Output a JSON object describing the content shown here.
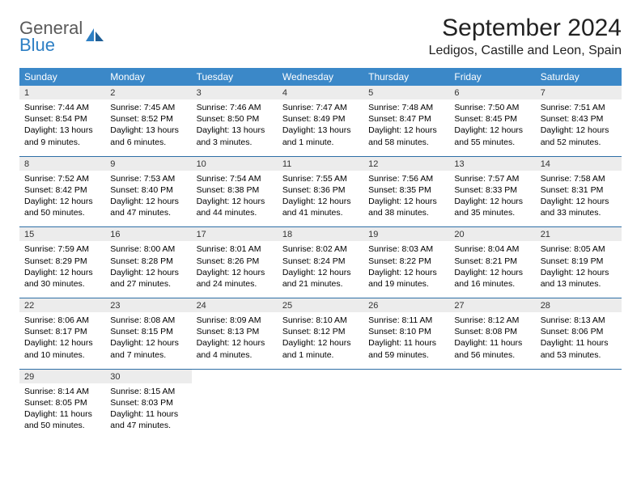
{
  "logo": {
    "line1": "General",
    "line2": "Blue",
    "text_color": "#5a5a5a",
    "accent_color": "#2d7fc4"
  },
  "title": "September 2024",
  "location": "Ledigos, Castille and Leon, Spain",
  "header_bg": "#3b88c8",
  "daynum_bg": "#ececec",
  "rule_color": "#2e6fa6",
  "weekdays": [
    "Sunday",
    "Monday",
    "Tuesday",
    "Wednesday",
    "Thursday",
    "Friday",
    "Saturday"
  ],
  "weeks": [
    [
      {
        "n": "1",
        "sr": "Sunrise: 7:44 AM",
        "ss": "Sunset: 8:54 PM",
        "dl": "Daylight: 13 hours and 9 minutes."
      },
      {
        "n": "2",
        "sr": "Sunrise: 7:45 AM",
        "ss": "Sunset: 8:52 PM",
        "dl": "Daylight: 13 hours and 6 minutes."
      },
      {
        "n": "3",
        "sr": "Sunrise: 7:46 AM",
        "ss": "Sunset: 8:50 PM",
        "dl": "Daylight: 13 hours and 3 minutes."
      },
      {
        "n": "4",
        "sr": "Sunrise: 7:47 AM",
        "ss": "Sunset: 8:49 PM",
        "dl": "Daylight: 13 hours and 1 minute."
      },
      {
        "n": "5",
        "sr": "Sunrise: 7:48 AM",
        "ss": "Sunset: 8:47 PM",
        "dl": "Daylight: 12 hours and 58 minutes."
      },
      {
        "n": "6",
        "sr": "Sunrise: 7:50 AM",
        "ss": "Sunset: 8:45 PM",
        "dl": "Daylight: 12 hours and 55 minutes."
      },
      {
        "n": "7",
        "sr": "Sunrise: 7:51 AM",
        "ss": "Sunset: 8:43 PM",
        "dl": "Daylight: 12 hours and 52 minutes."
      }
    ],
    [
      {
        "n": "8",
        "sr": "Sunrise: 7:52 AM",
        "ss": "Sunset: 8:42 PM",
        "dl": "Daylight: 12 hours and 50 minutes."
      },
      {
        "n": "9",
        "sr": "Sunrise: 7:53 AM",
        "ss": "Sunset: 8:40 PM",
        "dl": "Daylight: 12 hours and 47 minutes."
      },
      {
        "n": "10",
        "sr": "Sunrise: 7:54 AM",
        "ss": "Sunset: 8:38 PM",
        "dl": "Daylight: 12 hours and 44 minutes."
      },
      {
        "n": "11",
        "sr": "Sunrise: 7:55 AM",
        "ss": "Sunset: 8:36 PM",
        "dl": "Daylight: 12 hours and 41 minutes."
      },
      {
        "n": "12",
        "sr": "Sunrise: 7:56 AM",
        "ss": "Sunset: 8:35 PM",
        "dl": "Daylight: 12 hours and 38 minutes."
      },
      {
        "n": "13",
        "sr": "Sunrise: 7:57 AM",
        "ss": "Sunset: 8:33 PM",
        "dl": "Daylight: 12 hours and 35 minutes."
      },
      {
        "n": "14",
        "sr": "Sunrise: 7:58 AM",
        "ss": "Sunset: 8:31 PM",
        "dl": "Daylight: 12 hours and 33 minutes."
      }
    ],
    [
      {
        "n": "15",
        "sr": "Sunrise: 7:59 AM",
        "ss": "Sunset: 8:29 PM",
        "dl": "Daylight: 12 hours and 30 minutes."
      },
      {
        "n": "16",
        "sr": "Sunrise: 8:00 AM",
        "ss": "Sunset: 8:28 PM",
        "dl": "Daylight: 12 hours and 27 minutes."
      },
      {
        "n": "17",
        "sr": "Sunrise: 8:01 AM",
        "ss": "Sunset: 8:26 PM",
        "dl": "Daylight: 12 hours and 24 minutes."
      },
      {
        "n": "18",
        "sr": "Sunrise: 8:02 AM",
        "ss": "Sunset: 8:24 PM",
        "dl": "Daylight: 12 hours and 21 minutes."
      },
      {
        "n": "19",
        "sr": "Sunrise: 8:03 AM",
        "ss": "Sunset: 8:22 PM",
        "dl": "Daylight: 12 hours and 19 minutes."
      },
      {
        "n": "20",
        "sr": "Sunrise: 8:04 AM",
        "ss": "Sunset: 8:21 PM",
        "dl": "Daylight: 12 hours and 16 minutes."
      },
      {
        "n": "21",
        "sr": "Sunrise: 8:05 AM",
        "ss": "Sunset: 8:19 PM",
        "dl": "Daylight: 12 hours and 13 minutes."
      }
    ],
    [
      {
        "n": "22",
        "sr": "Sunrise: 8:06 AM",
        "ss": "Sunset: 8:17 PM",
        "dl": "Daylight: 12 hours and 10 minutes."
      },
      {
        "n": "23",
        "sr": "Sunrise: 8:08 AM",
        "ss": "Sunset: 8:15 PM",
        "dl": "Daylight: 12 hours and 7 minutes."
      },
      {
        "n": "24",
        "sr": "Sunrise: 8:09 AM",
        "ss": "Sunset: 8:13 PM",
        "dl": "Daylight: 12 hours and 4 minutes."
      },
      {
        "n": "25",
        "sr": "Sunrise: 8:10 AM",
        "ss": "Sunset: 8:12 PM",
        "dl": "Daylight: 12 hours and 1 minute."
      },
      {
        "n": "26",
        "sr": "Sunrise: 8:11 AM",
        "ss": "Sunset: 8:10 PM",
        "dl": "Daylight: 11 hours and 59 minutes."
      },
      {
        "n": "27",
        "sr": "Sunrise: 8:12 AM",
        "ss": "Sunset: 8:08 PM",
        "dl": "Daylight: 11 hours and 56 minutes."
      },
      {
        "n": "28",
        "sr": "Sunrise: 8:13 AM",
        "ss": "Sunset: 8:06 PM",
        "dl": "Daylight: 11 hours and 53 minutes."
      }
    ],
    [
      {
        "n": "29",
        "sr": "Sunrise: 8:14 AM",
        "ss": "Sunset: 8:05 PM",
        "dl": "Daylight: 11 hours and 50 minutes."
      },
      {
        "n": "30",
        "sr": "Sunrise: 8:15 AM",
        "ss": "Sunset: 8:03 PM",
        "dl": "Daylight: 11 hours and 47 minutes."
      },
      null,
      null,
      null,
      null,
      null
    ]
  ]
}
